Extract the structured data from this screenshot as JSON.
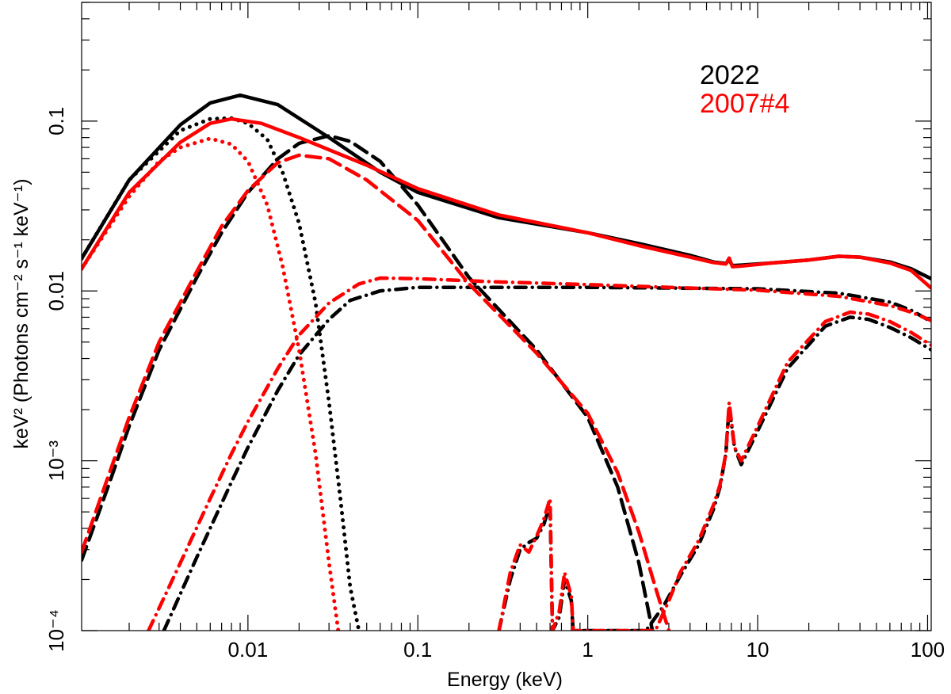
{
  "chart_data": {
    "type": "line",
    "title": "",
    "xlabel": "Energy (keV)",
    "ylabel": "keV² (Photons cm⁻² s⁻¹ keV⁻¹)",
    "xscale": "log",
    "yscale": "log",
    "xlim": [
      0.00105,
      105
    ],
    "ylim": [
      0.0001,
      0.5
    ],
    "x_tick_labels": [
      {
        "value": 0.01,
        "label": "0.01"
      },
      {
        "value": 0.1,
        "label": "0.1"
      },
      {
        "value": 1,
        "label": "1"
      },
      {
        "value": 10,
        "label": "10"
      },
      {
        "value": 100,
        "label": "100"
      }
    ],
    "y_tick_labels": [
      {
        "value": 0.0001,
        "label": "10⁻⁴"
      },
      {
        "value": 0.001,
        "label": "10⁻³"
      },
      {
        "value": 0.01,
        "label": "0.01"
      },
      {
        "value": 0.1,
        "label": "0.1"
      }
    ],
    "legend": {
      "position": "top-right",
      "entries": [
        {
          "label": "2022",
          "color": "#000000"
        },
        {
          "label": "2007#4",
          "color": "#ff0000"
        }
      ]
    },
    "series": [
      {
        "name": "2022 total model",
        "group": "2022",
        "component": "total",
        "style": "solid",
        "color": "#000000",
        "points": [
          [
            0.00105,
            0.0155
          ],
          [
            0.002,
            0.045
          ],
          [
            0.004,
            0.095
          ],
          [
            0.006,
            0.128
          ],
          [
            0.009,
            0.142
          ],
          [
            0.015,
            0.125
          ],
          [
            0.03,
            0.08
          ],
          [
            0.06,
            0.05
          ],
          [
            0.1,
            0.038
          ],
          [
            0.3,
            0.027
          ],
          [
            1,
            0.022
          ],
          [
            2,
            0.019
          ],
          [
            4,
            0.0162
          ],
          [
            5.5,
            0.0148
          ],
          [
            6.5,
            0.0145
          ],
          [
            6.8,
            0.0152
          ],
          [
            7.1,
            0.0141
          ],
          [
            8,
            0.0142
          ],
          [
            12,
            0.0146
          ],
          [
            20,
            0.0152
          ],
          [
            30,
            0.016
          ],
          [
            40,
            0.0158
          ],
          [
            60,
            0.0148
          ],
          [
            80,
            0.0135
          ],
          [
            105,
            0.0118
          ]
        ]
      },
      {
        "name": "2022 soft component",
        "group": "2022",
        "component": "soft",
        "style": "dotted",
        "color": "#000000",
        "points": [
          [
            0.00105,
            0.0155
          ],
          [
            0.002,
            0.045
          ],
          [
            0.004,
            0.088
          ],
          [
            0.006,
            0.103
          ],
          [
            0.008,
            0.104
          ],
          [
            0.01,
            0.097
          ],
          [
            0.013,
            0.078
          ],
          [
            0.016,
            0.05
          ],
          [
            0.02,
            0.025
          ],
          [
            0.025,
            0.0085
          ],
          [
            0.03,
            0.0022
          ],
          [
            0.035,
            0.0006
          ],
          [
            0.04,
            0.00018
          ],
          [
            0.045,
            0.0001
          ]
        ]
      },
      {
        "name": "2022 warm component",
        "group": "2022",
        "component": "warm",
        "style": "dashed",
        "color": "#000000",
        "points": [
          [
            0.00105,
            0.00026
          ],
          [
            0.0015,
            0.0007
          ],
          [
            0.002,
            0.0016
          ],
          [
            0.003,
            0.0045
          ],
          [
            0.005,
            0.012
          ],
          [
            0.007,
            0.022
          ],
          [
            0.01,
            0.038
          ],
          [
            0.015,
            0.06
          ],
          [
            0.02,
            0.074
          ],
          [
            0.03,
            0.082
          ],
          [
            0.04,
            0.076
          ],
          [
            0.06,
            0.058
          ],
          [
            0.1,
            0.032
          ],
          [
            0.2,
            0.012
          ],
          [
            0.5,
            0.0045
          ],
          [
            1,
            0.0018
          ],
          [
            1.5,
            0.0007
          ],
          [
            2,
            0.00025
          ],
          [
            2.4,
            0.0001
          ]
        ]
      },
      {
        "name": "2022 power-law continuum",
        "group": "2022",
        "component": "continuum",
        "style": "dashdot",
        "color": "#000000",
        "points": [
          [
            0.0032,
            0.0001
          ],
          [
            0.005,
            0.00027
          ],
          [
            0.008,
            0.00075
          ],
          [
            0.01,
            0.0012
          ],
          [
            0.015,
            0.0026
          ],
          [
            0.02,
            0.0042
          ],
          [
            0.03,
            0.0068
          ],
          [
            0.04,
            0.0088
          ],
          [
            0.06,
            0.01
          ],
          [
            0.1,
            0.0105
          ],
          [
            0.3,
            0.0105
          ],
          [
            1,
            0.0105
          ],
          [
            10,
            0.0103
          ],
          [
            30,
            0.0097
          ],
          [
            60,
            0.0086
          ],
          [
            80,
            0.0077
          ],
          [
            105,
            0.0066
          ]
        ]
      },
      {
        "name": "2022 reflection",
        "group": "2022",
        "component": "reflection",
        "style": "dashdot",
        "color": "#000000",
        "points": [
          [
            0.3,
            0.0001
          ],
          [
            0.35,
            0.0002
          ],
          [
            0.4,
            0.0003
          ],
          [
            0.45,
            0.00033
          ],
          [
            0.5,
            0.00035
          ],
          [
            0.55,
            0.00042
          ],
          [
            0.6,
            0.00055
          ],
          [
            0.62,
            0.0001
          ],
          [
            0.68,
            0.00012
          ],
          [
            0.73,
            0.0002
          ],
          [
            0.8,
            0.00015
          ],
          [
            0.82,
            0.0001
          ],
          [
            2.2,
            0.0001
          ],
          [
            2.8,
            0.00014
          ],
          [
            3.5,
            0.00021
          ],
          [
            4.5,
            0.00032
          ],
          [
            5.5,
            0.00052
          ],
          [
            6,
            0.0007
          ],
          [
            6.5,
            0.0011
          ],
          [
            6.8,
            0.0021
          ],
          [
            7.3,
            0.0012
          ],
          [
            8,
            0.00095
          ],
          [
            10,
            0.0015
          ],
          [
            15,
            0.0035
          ],
          [
            25,
            0.0062
          ],
          [
            35,
            0.007
          ],
          [
            45,
            0.0068
          ],
          [
            60,
            0.0061
          ],
          [
            80,
            0.0053
          ],
          [
            105,
            0.0045
          ]
        ]
      },
      {
        "name": "2007#4 total model",
        "group": "2007#4",
        "component": "total",
        "style": "solid",
        "color": "#ff0000",
        "points": [
          [
            0.00105,
            0.0135
          ],
          [
            0.002,
            0.038
          ],
          [
            0.004,
            0.075
          ],
          [
            0.006,
            0.097
          ],
          [
            0.008,
            0.103
          ],
          [
            0.012,
            0.097
          ],
          [
            0.02,
            0.08
          ],
          [
            0.05,
            0.055
          ],
          [
            0.1,
            0.04
          ],
          [
            0.3,
            0.028
          ],
          [
            1,
            0.022
          ],
          [
            2,
            0.0185
          ],
          [
            4,
            0.0158
          ],
          [
            5.5,
            0.0147
          ],
          [
            6.5,
            0.0144
          ],
          [
            6.8,
            0.0156
          ],
          [
            7.1,
            0.0139
          ],
          [
            8,
            0.014
          ],
          [
            12,
            0.0146
          ],
          [
            20,
            0.0152
          ],
          [
            30,
            0.016
          ],
          [
            40,
            0.0158
          ],
          [
            60,
            0.0146
          ],
          [
            80,
            0.0132
          ],
          [
            105,
            0.0104
          ]
        ]
      },
      {
        "name": "2007#4 soft component",
        "group": "2007#4",
        "component": "soft",
        "style": "dotted",
        "color": "#ff0000",
        "points": [
          [
            0.00105,
            0.0135
          ],
          [
            0.002,
            0.036
          ],
          [
            0.003,
            0.058
          ],
          [
            0.004,
            0.07
          ],
          [
            0.006,
            0.079
          ],
          [
            0.008,
            0.073
          ],
          [
            0.01,
            0.058
          ],
          [
            0.013,
            0.032
          ],
          [
            0.016,
            0.014
          ],
          [
            0.02,
            0.0045
          ],
          [
            0.025,
            0.0011
          ],
          [
            0.03,
            0.00025
          ],
          [
            0.034,
            0.0001
          ]
        ]
      },
      {
        "name": "2007#4 warm component",
        "group": "2007#4",
        "component": "warm",
        "style": "dashed",
        "color": "#ff0000",
        "points": [
          [
            0.00105,
            0.00029
          ],
          [
            0.0015,
            0.0008
          ],
          [
            0.002,
            0.0018
          ],
          [
            0.003,
            0.005
          ],
          [
            0.005,
            0.013
          ],
          [
            0.007,
            0.024
          ],
          [
            0.01,
            0.039
          ],
          [
            0.015,
            0.057
          ],
          [
            0.02,
            0.063
          ],
          [
            0.03,
            0.06
          ],
          [
            0.05,
            0.045
          ],
          [
            0.1,
            0.026
          ],
          [
            0.2,
            0.011
          ],
          [
            0.5,
            0.0043
          ],
          [
            1,
            0.0019
          ],
          [
            1.5,
            0.00085
          ],
          [
            2,
            0.00038
          ],
          [
            2.5,
            0.00018
          ],
          [
            3,
            0.0001
          ]
        ]
      },
      {
        "name": "2007#4 power-law continuum",
        "group": "2007#4",
        "component": "continuum",
        "style": "dashdot",
        "color": "#ff0000",
        "points": [
          [
            0.0026,
            0.0001
          ],
          [
            0.004,
            0.00025
          ],
          [
            0.006,
            0.0006
          ],
          [
            0.008,
            0.0011
          ],
          [
            0.01,
            0.0017
          ],
          [
            0.015,
            0.0035
          ],
          [
            0.02,
            0.0055
          ],
          [
            0.03,
            0.0085
          ],
          [
            0.045,
            0.011
          ],
          [
            0.06,
            0.0119
          ],
          [
            0.1,
            0.0118
          ],
          [
            0.3,
            0.0113
          ],
          [
            1,
            0.0109
          ],
          [
            3,
            0.0105
          ],
          [
            10,
            0.0101
          ],
          [
            30,
            0.0093
          ],
          [
            60,
            0.0082
          ],
          [
            80,
            0.0075
          ],
          [
            105,
            0.0067
          ]
        ]
      },
      {
        "name": "2007#4 reflection",
        "group": "2007#4",
        "component": "reflection",
        "style": "dashdot",
        "color": "#ff0000",
        "points": [
          [
            0.3,
            0.0001
          ],
          [
            0.35,
            0.00022
          ],
          [
            0.4,
            0.00032
          ],
          [
            0.45,
            0.00029
          ],
          [
            0.5,
            0.00036
          ],
          [
            0.55,
            0.00045
          ],
          [
            0.6,
            0.0006
          ],
          [
            0.62,
            0.0001
          ],
          [
            0.68,
            0.00013
          ],
          [
            0.73,
            0.00022
          ],
          [
            0.8,
            0.00016
          ],
          [
            0.82,
            0.0001
          ],
          [
            2.5,
            0.0001
          ],
          [
            3,
            0.00015
          ],
          [
            3.5,
            0.00022
          ],
          [
            4.5,
            0.00034
          ],
          [
            5.5,
            0.00055
          ],
          [
            6,
            0.00072
          ],
          [
            6.5,
            0.0011
          ],
          [
            6.8,
            0.0022
          ],
          [
            7.3,
            0.0012
          ],
          [
            8,
            0.001
          ],
          [
            10,
            0.0016
          ],
          [
            15,
            0.0038
          ],
          [
            25,
            0.0066
          ],
          [
            35,
            0.0075
          ],
          [
            45,
            0.0073
          ],
          [
            60,
            0.0066
          ],
          [
            80,
            0.0057
          ],
          [
            105,
            0.0048
          ]
        ]
      }
    ]
  }
}
